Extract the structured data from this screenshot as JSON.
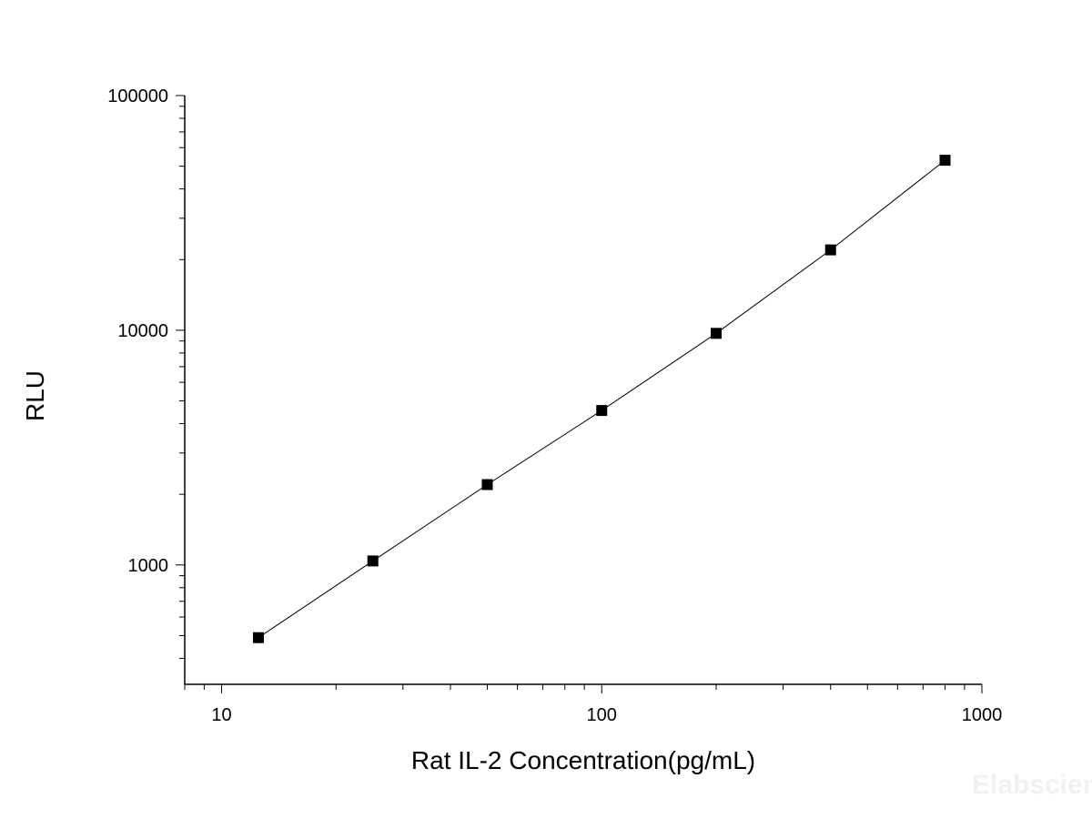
{
  "chart_data": {
    "type": "line",
    "xlabel": "Rat IL-2 Concentration(pg/mL)",
    "ylabel": "RLU",
    "xscale": "log",
    "yscale": "log",
    "xlim": [
      8,
      1000
    ],
    "ylim": [
      310,
      100000
    ],
    "x_ticks": [
      10,
      100,
      1000
    ],
    "x_tick_labels": [
      "10",
      "100",
      "1000"
    ],
    "y_ticks": [
      1000,
      10000,
      100000
    ],
    "y_tick_labels": [
      "1000",
      "10000",
      "100000"
    ],
    "grid": false,
    "legend": "none",
    "marker": "square",
    "color": "#000000",
    "x": [
      12.5,
      25,
      50,
      100,
      200,
      400,
      800
    ],
    "y": [
      490,
      1040,
      2200,
      4550,
      9700,
      22000,
      53000
    ]
  },
  "watermark": "Elabscience"
}
